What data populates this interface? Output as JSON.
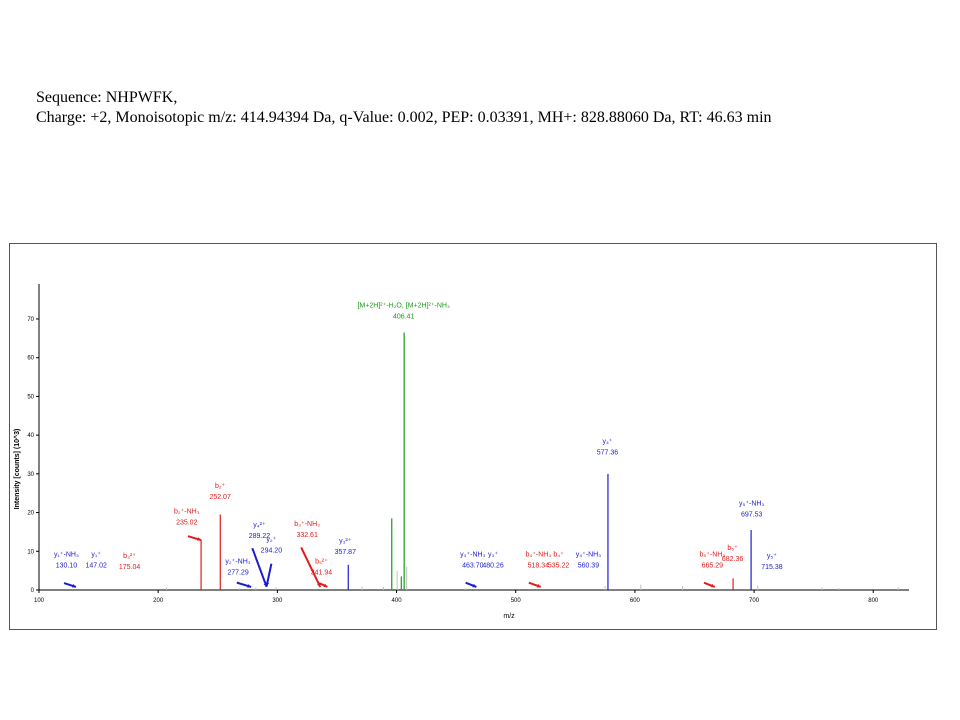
{
  "header": {
    "sequence_line": "Sequence: NHPWFK,",
    "details_line": "Charge: +2, Monoisotopic m/z: 414.94394 Da, q-Value: 0.002, PEP: 0.03391, MH+: 828.88060 Da, RT: 46.63 min"
  },
  "colors": {
    "b_ion": "#e31b1b",
    "y_ion": "#1b1bd6",
    "precursor": "#1a9a1a",
    "unassigned": "#c0c0c0",
    "axis": "#000000"
  },
  "chart_data": {
    "type": "bar",
    "title": "",
    "xlabel": "m/z",
    "ylabel": "Intensity [counts] (10^3)",
    "xlim": [
      100,
      830
    ],
    "ylim": [
      0,
      78
    ],
    "x_ticks": [
      "100",
      "200",
      "300",
      "400",
      "500",
      "600",
      "700",
      "800"
    ],
    "y_ticks": [
      "0",
      "10",
      "20",
      "30",
      "40",
      "50",
      "60",
      "70"
    ],
    "grid": false,
    "legend": "none",
    "peaks": [
      {
        "mz": 236.0,
        "intensity": 13.0,
        "type": "b"
      },
      {
        "mz": 252.1,
        "intensity": 19.5,
        "type": "b"
      },
      {
        "mz": 359.5,
        "intensity": 6.5,
        "type": "y"
      },
      {
        "mz": 396.0,
        "intensity": 18.5,
        "type": "precursor"
      },
      {
        "mz": 404.0,
        "intensity": 3.5,
        "type": "precursor"
      },
      {
        "mz": 406.4,
        "intensity": 66.5,
        "type": "precursor"
      },
      {
        "mz": 577.4,
        "intensity": 30.0,
        "type": "y"
      },
      {
        "mz": 682.4,
        "intensity": 3.0,
        "type": "b"
      },
      {
        "mz": 697.5,
        "intensity": 15.5,
        "type": "y"
      },
      {
        "mz": 207.0,
        "intensity": 0.6,
        "type": "unassigned"
      },
      {
        "mz": 268.0,
        "intensity": 0.5,
        "type": "unassigned"
      },
      {
        "mz": 282.0,
        "intensity": 0.6,
        "type": "unassigned"
      },
      {
        "mz": 299.0,
        "intensity": 0.7,
        "type": "unassigned"
      },
      {
        "mz": 371.0,
        "intensity": 0.9,
        "type": "unassigned"
      },
      {
        "mz": 389.0,
        "intensity": 0.8,
        "type": "unassigned"
      },
      {
        "mz": 400.5,
        "intensity": 5.0,
        "type": "unassigned"
      },
      {
        "mz": 408.5,
        "intensity": 6.0,
        "type": "unassigned"
      },
      {
        "mz": 458.0,
        "intensity": 0.5,
        "type": "unassigned"
      },
      {
        "mz": 575.0,
        "intensity": 1.0,
        "type": "unassigned"
      },
      {
        "mz": 605.0,
        "intensity": 1.4,
        "type": "unassigned"
      },
      {
        "mz": 640.0,
        "intensity": 1.0,
        "type": "unassigned"
      },
      {
        "mz": 703.0,
        "intensity": 1.2,
        "type": "unassigned"
      },
      {
        "mz": 757.0,
        "intensity": 0.6,
        "type": "unassigned"
      },
      {
        "mz": 771.0,
        "intensity": 0.5,
        "type": "unassigned"
      },
      {
        "mz": 821.0,
        "intensity": 0.7,
        "type": "unassigned"
      }
    ],
    "annotations": [
      {
        "ion": "y₁⁺-NH₃",
        "mz_label": "130.10",
        "type": "y",
        "label_mz": 123,
        "label_int": 8.6,
        "arrow": [
          [
            121,
            1.8
          ],
          [
            131,
            0.8
          ]
        ]
      },
      {
        "ion": "y₁⁺",
        "mz_label": "147.02",
        "type": "y",
        "label_mz": 148,
        "label_int": 8.6
      },
      {
        "ion": "b₃²⁺",
        "mz_label": "175.04",
        "type": "b",
        "label_mz": 176,
        "label_int": 8.3
      },
      {
        "ion": "b₂⁺-NH₃",
        "mz_label": "235.02",
        "type": "b",
        "label_mz": 224,
        "label_int": 19.8,
        "arrow": [
          [
            225,
            13.9
          ],
          [
            236,
            12.9
          ]
        ]
      },
      {
        "ion": "b₂⁺",
        "mz_label": "252.07",
        "type": "b",
        "label_mz": 252,
        "label_int": 26.3
      },
      {
        "ion": "y₄²⁺",
        "mz_label": "289.22",
        "type": "y",
        "label_mz": 285,
        "label_int": 16.3,
        "arrow": [
          [
            279,
            10.8
          ],
          [
            291,
            0.8
          ]
        ]
      },
      {
        "ion": "y₂⁺-NH₃",
        "mz_label": "277.29",
        "type": "y",
        "label_mz": 267,
        "label_int": 6.9,
        "arrow": [
          [
            266,
            1.9
          ],
          [
            278,
            0.8
          ]
        ]
      },
      {
        "ion": "y₂⁺",
        "mz_label": "294.20",
        "type": "y",
        "label_mz": 295,
        "label_int": 12.5,
        "arrow": [
          [
            295,
            6.8
          ],
          [
            291,
            1.0
          ]
        ]
      },
      {
        "ion": "b₃⁺-NH₃",
        "mz_label": "332.61",
        "type": "b",
        "label_mz": 325,
        "label_int": 16.5,
        "arrow": [
          [
            320,
            11.0
          ],
          [
            336,
            0.8
          ]
        ]
      },
      {
        "ion": "b₅²⁺",
        "mz_label": "341.94",
        "type": "b",
        "label_mz": 337,
        "label_int": 6.9,
        "arrow": [
          [
            335,
            1.8
          ],
          [
            342,
            0.8
          ]
        ]
      },
      {
        "ion": "y₃²⁺",
        "mz_label": "357.87",
        "type": "y",
        "label_mz": 357,
        "label_int": 12.2
      },
      {
        "ion": "[M+2H]²⁺-H₂O, [M+2H]²⁺-NH₃",
        "mz_label": "406.41",
        "type": "precursor",
        "label_mz": 406,
        "label_int": 73.0
      },
      {
        "ion": "y₃⁺-NH₃",
        "mz_label": "463.70",
        "type": "y",
        "label_mz": 464,
        "label_int": 8.6,
        "arrow": [
          [
            458,
            1.9
          ],
          [
            467,
            0.8
          ]
        ]
      },
      {
        "ion": "y₃⁺",
        "mz_label": "480.26",
        "type": "y",
        "label_mz": 481,
        "label_int": 8.6
      },
      {
        "ion": "b₄⁺-NH₃",
        "mz_label": "518.34",
        "type": "b",
        "label_mz": 519,
        "label_int": 8.6,
        "arrow": [
          [
            511,
            1.9
          ],
          [
            521,
            0.8
          ]
        ]
      },
      {
        "ion": "b₄⁺",
        "mz_label": "535.22",
        "type": "b",
        "label_mz": 536,
        "label_int": 8.6
      },
      {
        "ion": "y₄⁺-NH₃",
        "mz_label": "560.39",
        "type": "y",
        "label_mz": 561,
        "label_int": 8.6
      },
      {
        "ion": "y₄⁺",
        "mz_label": "577.36",
        "type": "y",
        "label_mz": 577,
        "label_int": 37.8
      },
      {
        "ion": "b₅⁺-NH₃",
        "mz_label": "665.29",
        "type": "b",
        "label_mz": 665,
        "label_int": 8.6,
        "arrow": [
          [
            658,
            1.9
          ],
          [
            667,
            0.8
          ]
        ]
      },
      {
        "ion": "b₅⁺",
        "mz_label": "682.36",
        "type": "b",
        "label_mz": 682,
        "label_int": 10.3
      },
      {
        "ion": "y₅⁺-NH₃",
        "mz_label": "697.53",
        "type": "y",
        "label_mz": 698,
        "label_int": 21.8
      },
      {
        "ion": "y₅⁺",
        "mz_label": "715.38",
        "type": "y",
        "label_mz": 715,
        "label_int": 8.3
      }
    ]
  }
}
